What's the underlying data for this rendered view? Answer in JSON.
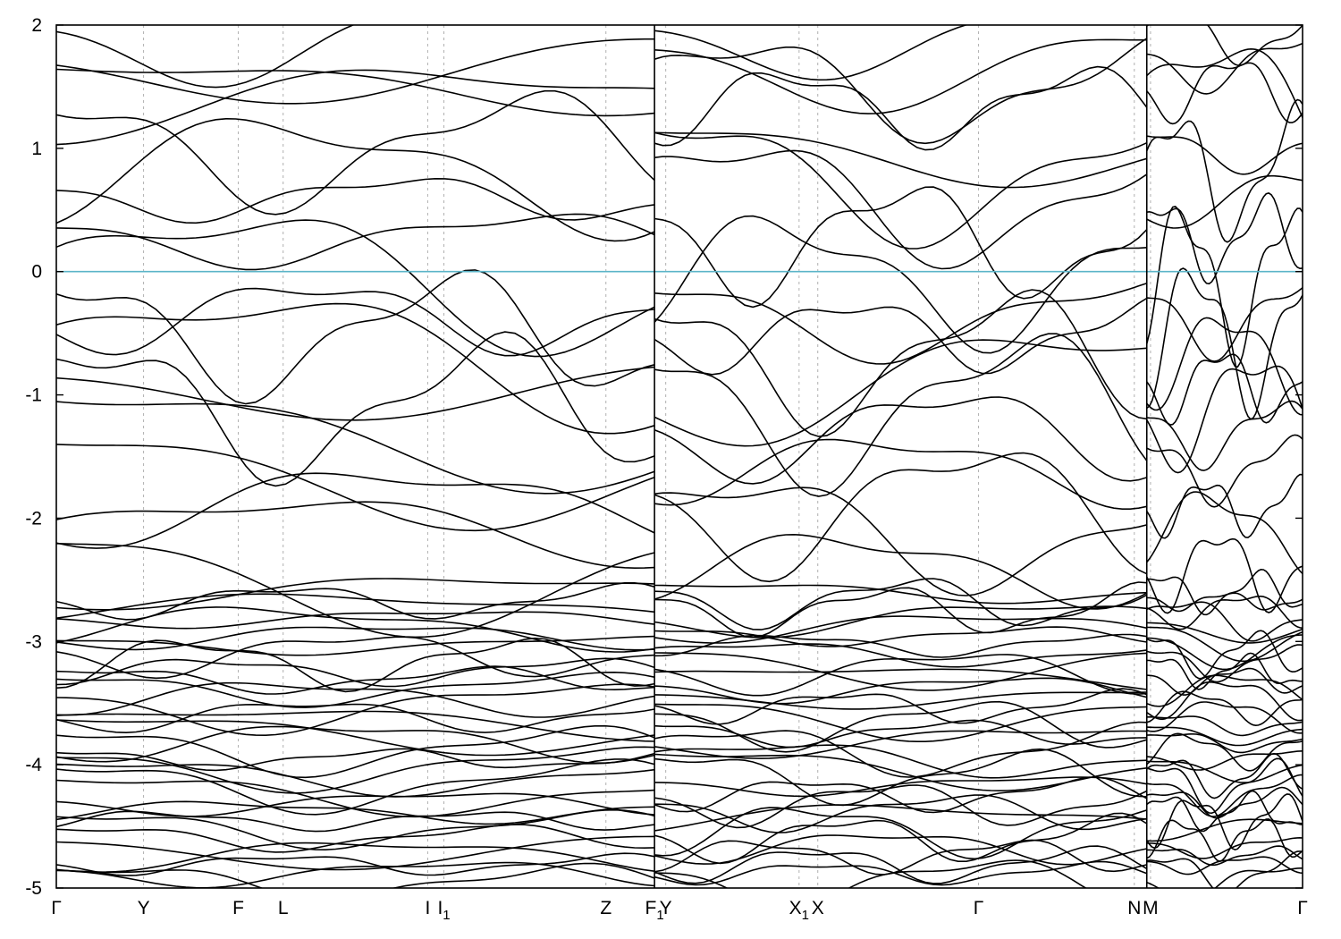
{
  "chart_data": {
    "type": "line",
    "title": "",
    "xlabel": "",
    "ylabel": "",
    "ylim": [
      -5,
      2
    ],
    "yticks": [
      "2",
      "1",
      "0",
      "-1",
      "-2",
      "-3",
      "-4",
      "-5"
    ],
    "ytick_values": [
      2,
      1,
      0,
      -1,
      -2,
      -3,
      -4,
      -5
    ],
    "fermi_level": 0,
    "fermi_color": "#5bb4c8",
    "line_color": "#000000",
    "grid": "vertical dashed at high-symmetry points",
    "segments": [
      [
        "Γ",
        "Y",
        "F",
        "L",
        "I",
        "I1",
        "Z",
        "F1"
      ],
      [
        "Y",
        "X1",
        "X",
        "Γ",
        "N"
      ],
      [
        "M",
        "Γ"
      ]
    ],
    "kpoints": [
      {
        "label": "Γ",
        "sub": "",
        "pos": 0.0
      },
      {
        "label": "Y",
        "sub": "",
        "pos": 0.07
      },
      {
        "label": "F",
        "sub": "",
        "pos": 0.146
      },
      {
        "label": "L",
        "sub": "",
        "pos": 0.182
      },
      {
        "label": "I",
        "sub": "",
        "pos": 0.298
      },
      {
        "label": "I",
        "sub": "1",
        "pos": 0.311
      },
      {
        "label": "Z",
        "sub": "",
        "pos": 0.441
      },
      {
        "label": "F",
        "sub": "1",
        "pos": 0.48
      },
      {
        "label": "Y",
        "sub": "",
        "pos": 0.489
      },
      {
        "label": "X",
        "sub": "1",
        "pos": 0.596
      },
      {
        "label": "X",
        "sub": "",
        "pos": 0.611
      },
      {
        "label": "Γ",
        "sub": "",
        "pos": 0.74
      },
      {
        "label": "N",
        "sub": "",
        "pos": 0.865
      },
      {
        "label": "M",
        "sub": "",
        "pos": 0.878
      },
      {
        "label": "Γ",
        "sub": "",
        "pos": 1.0
      }
    ],
    "bands_shown": {
      "conduction_near_fermi": [
        0.27,
        0.6,
        0.8,
        1.0,
        1.35,
        1.5,
        1.7,
        1.9
      ],
      "valence_near_fermi": [
        -0.05,
        -0.35,
        -0.5,
        -0.7,
        -0.9,
        -1.1,
        -1.3,
        -1.6,
        -1.9,
        -2.1,
        -2.4
      ],
      "dense_manifold_range": [
        -5.0,
        -2.6
      ]
    }
  }
}
